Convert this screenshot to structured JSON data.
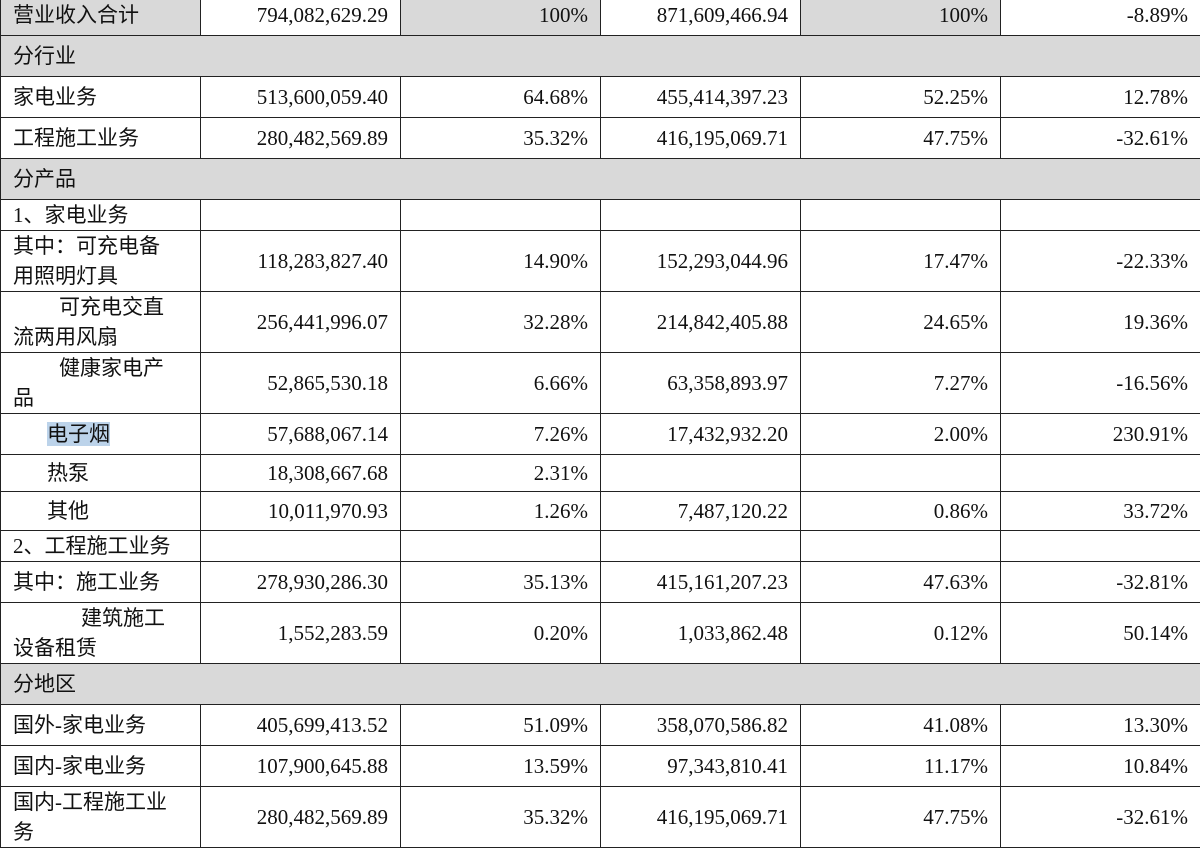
{
  "rows": [
    {
      "type": "data",
      "label": "营业收入合计",
      "v1": "794,082,629.29",
      "p1": "100%",
      "v2": "871,609,466.94",
      "p2": "100%",
      "chg": "-8.89%"
    },
    {
      "type": "section",
      "label": "分行业"
    },
    {
      "type": "data",
      "label": "家电业务",
      "v1": "513,600,059.40",
      "p1": "64.68%",
      "v2": "455,414,397.23",
      "p2": "52.25%",
      "chg": "12.78%"
    },
    {
      "type": "data",
      "label": "工程施工业务",
      "v1": "280,482,569.89",
      "p1": "35.32%",
      "v2": "416,195,069.71",
      "p2": "47.75%",
      "chg": "-32.61%"
    },
    {
      "type": "section",
      "label": "分产品"
    },
    {
      "type": "data",
      "label": "1、家电业务",
      "v1": "",
      "p1": "",
      "v2": "",
      "p2": "",
      "chg": ""
    },
    {
      "type": "data",
      "label_l1": "其中：可充电备",
      "label_l2": "用照明灯具",
      "v1": "118,283,827.40",
      "p1": "14.90%",
      "v2": "152,293,044.96",
      "p2": "17.47%",
      "chg": "-22.33%"
    },
    {
      "type": "data",
      "label_l1": "可充电交直",
      "label_l2": "流两用风扇",
      "v1": "256,441,996.07",
      "p1": "32.28%",
      "v2": "214,842,405.88",
      "p2": "24.65%",
      "chg": "19.36%"
    },
    {
      "type": "data",
      "label_l1": "健康家电产",
      "label_l2": "品",
      "v1": "52,865,530.18",
      "p1": "6.66%",
      "v2": "63,358,893.97",
      "p2": "7.27%",
      "chg": "-16.56%"
    },
    {
      "type": "data",
      "label": "电子烟",
      "v1": "57,688,067.14",
      "p1": "7.26%",
      "v2": "17,432,932.20",
      "p2": "2.00%",
      "chg": "230.91%"
    },
    {
      "type": "data",
      "label": "热泵",
      "v1": "18,308,667.68",
      "p1": "2.31%",
      "v2": "",
      "p2": "",
      "chg": ""
    },
    {
      "type": "data",
      "label": "其他",
      "v1": "10,011,970.93",
      "p1": "1.26%",
      "v2": "7,487,120.22",
      "p2": "0.86%",
      "chg": "33.72%"
    },
    {
      "type": "data",
      "label": "2、工程施工业务",
      "v1": "",
      "p1": "",
      "v2": "",
      "p2": "",
      "chg": ""
    },
    {
      "type": "data",
      "label": "其中：施工业务",
      "v1": "278,930,286.30",
      "p1": "35.13%",
      "v2": "415,161,207.23",
      "p2": "47.63%",
      "chg": "-32.81%"
    },
    {
      "type": "data",
      "label_l1": "建筑施工",
      "label_l2": "设备租赁",
      "v1": "1,552,283.59",
      "p1": "0.20%",
      "v2": "1,033,862.48",
      "p2": "0.12%",
      "chg": "50.14%"
    },
    {
      "type": "section",
      "label": "分地区"
    },
    {
      "type": "data",
      "label": "国外-家电业务",
      "v1": "405,699,413.52",
      "p1": "51.09%",
      "v2": "358,070,586.82",
      "p2": "41.08%",
      "chg": "13.30%"
    },
    {
      "type": "data",
      "label": "国内-家电业务",
      "v1": "107,900,645.88",
      "p1": "13.59%",
      "v2": "97,343,810.41",
      "p2": "11.17%",
      "chg": "10.84%"
    },
    {
      "type": "data",
      "label_l1": "国内-工程施工业",
      "label_l2": "务",
      "v1": "280,482,569.89",
      "p1": "35.32%",
      "v2": "416,195,069.71",
      "p2": "47.75%",
      "chg": "-32.61%"
    }
  ],
  "colors": {
    "section_bg": "#d9d9d9",
    "highlight": "#bcd3ea",
    "border": "#222222"
  }
}
